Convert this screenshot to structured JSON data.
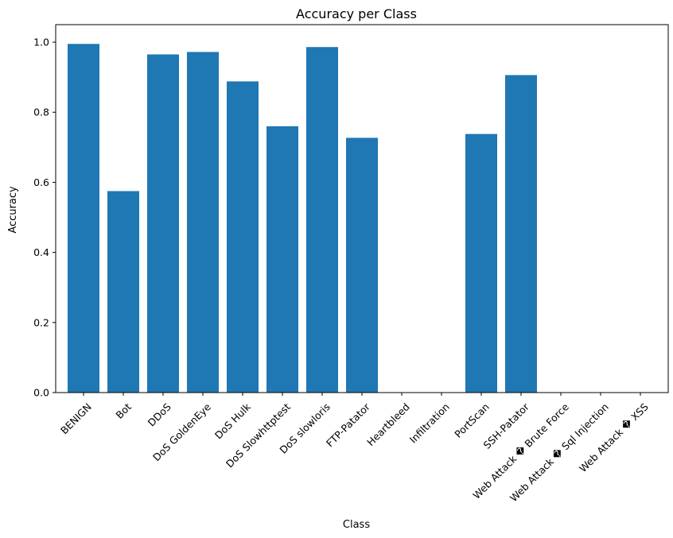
{
  "chart_data": {
    "type": "bar",
    "title": "Accuracy per Class",
    "xlabel": "Class",
    "ylabel": "Accuracy",
    "categories": [
      "BENIGN",
      "Bot",
      "DDoS",
      "DoS GoldenEye",
      "DoS Hulk",
      "DoS Slowhttptest",
      "DoS slowloris",
      "FTP-Patator",
      "Heartbleed",
      "Infiltration",
      "PortScan",
      "SSH-Patator",
      "Web Attack � Brute Force",
      "Web Attack � Sql Injection",
      "Web Attack � XSS"
    ],
    "values": [
      0.995,
      0.575,
      0.965,
      0.972,
      0.888,
      0.76,
      0.986,
      0.727,
      0.0,
      0.0,
      0.738,
      0.906,
      0.0,
      0.0,
      0.0
    ],
    "ylim": [
      0,
      1.05
    ],
    "yticks": [
      "0.0",
      "0.2",
      "0.4",
      "0.6",
      "0.8",
      "1.0"
    ],
    "bar_color": "#1f77b4",
    "grid": false,
    "legend": "none"
  }
}
